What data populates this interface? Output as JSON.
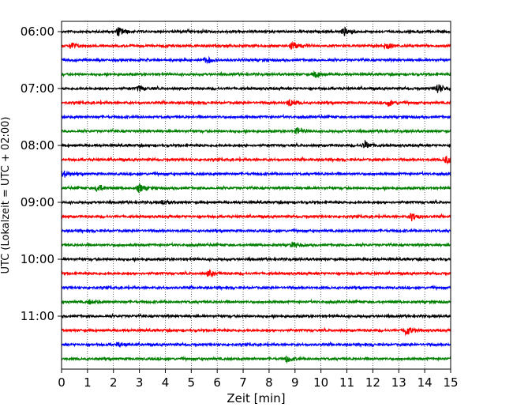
{
  "chart_data": {
    "type": "line",
    "title": "",
    "xlabel": "Zeit  [min]",
    "ylabel": "UTC (Lokalzeit = UTC + 02:00)",
    "xlim": [
      0,
      15
    ],
    "x_ticks": [
      "0",
      "1",
      "2",
      "3",
      "4",
      "5",
      "6",
      "7",
      "8",
      "9",
      "10",
      "11",
      "12",
      "13",
      "14",
      "15"
    ],
    "y_tick_labels": [
      "06:00",
      "07:00",
      "08:00",
      "09:00",
      "10:00",
      "11:00"
    ],
    "y_tick_rows": [
      0,
      4,
      8,
      12,
      16,
      20
    ],
    "grid": "vertical dotted",
    "legend": "none",
    "rows": [
      "06:00",
      "06:15",
      "06:30",
      "06:45",
      "07:00",
      "07:15",
      "07:30",
      "07:45",
      "08:00",
      "08:15",
      "08:30",
      "08:45",
      "09:00",
      "09:15",
      "09:30",
      "09:45",
      "10:00",
      "10:15",
      "10:30",
      "10:45",
      "11:00",
      "11:15",
      "11:30",
      "11:45"
    ],
    "series_colors": [
      "#000000",
      "#ff0000",
      "#0000ff",
      "#008000"
    ],
    "events": [
      {
        "row": 0,
        "t": 2.2,
        "amp": 0.7
      },
      {
        "row": 0,
        "t": 10.9,
        "amp": 0.6
      },
      {
        "row": 1,
        "t": 0.4,
        "amp": 0.5
      },
      {
        "row": 1,
        "t": 8.9,
        "amp": 0.7
      },
      {
        "row": 1,
        "t": 12.5,
        "amp": 0.5
      },
      {
        "row": 2,
        "t": 5.6,
        "amp": 0.5
      },
      {
        "row": 3,
        "t": 9.8,
        "amp": 0.4
      },
      {
        "row": 4,
        "t": 3.0,
        "amp": 0.4
      },
      {
        "row": 4,
        "t": 14.5,
        "amp": 0.8
      },
      {
        "row": 5,
        "t": 8.8,
        "amp": 0.6
      },
      {
        "row": 5,
        "t": 12.6,
        "amp": 0.5
      },
      {
        "row": 7,
        "t": 9.1,
        "amp": 0.5
      },
      {
        "row": 8,
        "t": 11.7,
        "amp": 0.6
      },
      {
        "row": 9,
        "t": 14.8,
        "amp": 0.6
      },
      {
        "row": 10,
        "t": 0.1,
        "amp": 0.5
      },
      {
        "row": 11,
        "t": 1.4,
        "amp": 0.6
      },
      {
        "row": 11,
        "t": 3.0,
        "amp": 0.6
      },
      {
        "row": 12,
        "t": 3.9,
        "amp": 0.3
      },
      {
        "row": 13,
        "t": 13.5,
        "amp": 0.6
      },
      {
        "row": 15,
        "t": 8.9,
        "amp": 0.4
      },
      {
        "row": 17,
        "t": 5.7,
        "amp": 0.4
      },
      {
        "row": 19,
        "t": 1.1,
        "amp": 0.3
      },
      {
        "row": 21,
        "t": 13.3,
        "amp": 0.8
      },
      {
        "row": 22,
        "t": 2.2,
        "amp": 0.3
      },
      {
        "row": 23,
        "t": 8.7,
        "amp": 0.5
      }
    ]
  }
}
